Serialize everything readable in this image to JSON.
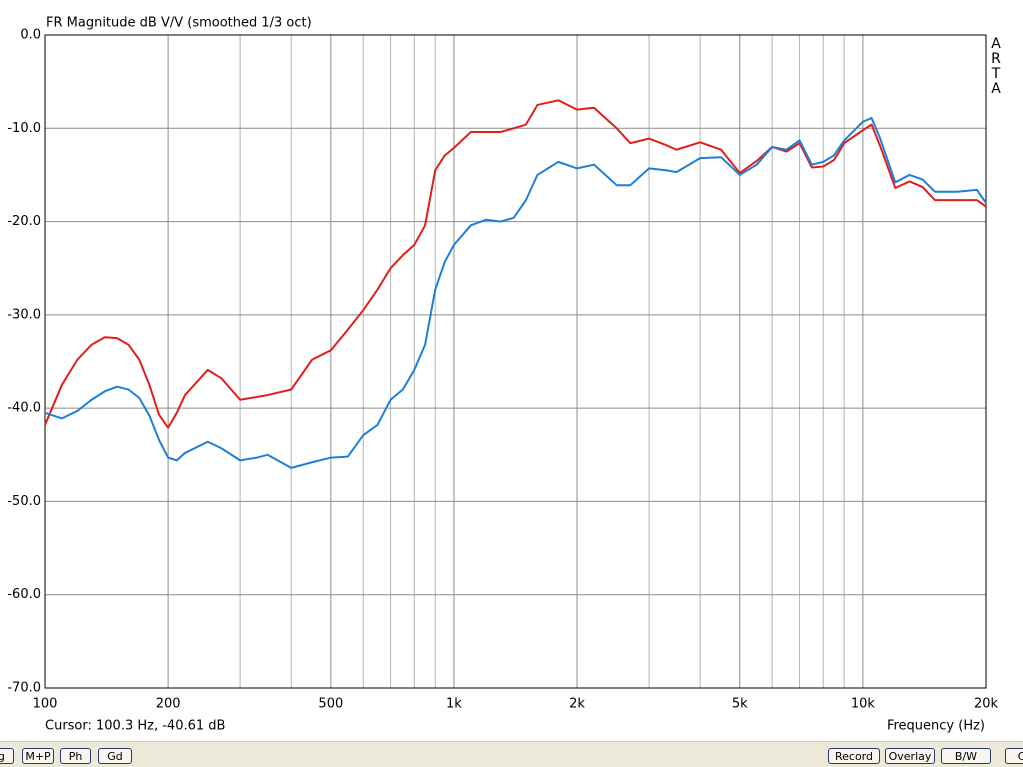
{
  "chart_data": {
    "type": "line",
    "title": "FR Magnitude dB V/V (smoothed 1/3 oct)",
    "xlabel": "Frequency (Hz)",
    "xscale": "log",
    "grid": true,
    "x": [
      100,
      110,
      120,
      130,
      140,
      150,
      160,
      170,
      180,
      190,
      200,
      210,
      220,
      250,
      270,
      300,
      330,
      350,
      400,
      450,
      500,
      550,
      600,
      650,
      700,
      750,
      800,
      850,
      900,
      950,
      1000,
      1100,
      1200,
      1300,
      1400,
      1500,
      1600,
      1800,
      2000,
      2200,
      2500,
      2700,
      3000,
      3300,
      3500,
      4000,
      4500,
      5000,
      5500,
      6000,
      6500,
      7000,
      7500,
      8000,
      8500,
      9000,
      10000,
      10500,
      11000,
      12000,
      13000,
      14000,
      15000,
      17000,
      19000,
      20000
    ],
    "series": [
      {
        "color": "#e01e1e",
        "values": [
          -41.8,
          -37.5,
          -34.8,
          -33.2,
          -32.4,
          -32.5,
          -33.2,
          -34.8,
          -37.5,
          -40.7,
          -42.1,
          -40.5,
          -38.6,
          -35.9,
          -36.8,
          -39.1,
          -38.8,
          -38.6,
          -38.0,
          -34.8,
          -33.8,
          -31.6,
          -29.5,
          -27.3,
          -25.0,
          -23.6,
          -22.5,
          -20.4,
          -14.5,
          -12.9,
          -12.1,
          -10.4,
          -10.4,
          -10.4,
          -10.0,
          -9.6,
          -7.5,
          -7.0,
          -8.0,
          -7.8,
          -10.0,
          -11.6,
          -11.1,
          -11.8,
          -12.3,
          -11.5,
          -12.3,
          -14.8,
          -13.5,
          -12.0,
          -12.5,
          -11.6,
          -14.2,
          -14.1,
          -13.4,
          -11.6,
          -10.2,
          -9.6,
          -11.8,
          -16.4,
          -15.7,
          -16.3,
          -17.7,
          -17.7,
          -17.7,
          -18.4
        ]
      },
      {
        "color": "#1f7fd4",
        "values": [
          -40.5,
          -41.1,
          -40.3,
          -39.1,
          -38.2,
          -37.7,
          -38.0,
          -38.9,
          -40.8,
          -43.4,
          -45.3,
          -45.6,
          -44.8,
          -43.6,
          -44.3,
          -45.6,
          -45.3,
          -45.0,
          -46.4,
          -45.8,
          -45.3,
          -45.2,
          -42.9,
          -41.8,
          -39.1,
          -38.0,
          -35.9,
          -33.2,
          -27.3,
          -24.3,
          -22.5,
          -20.4,
          -19.8,
          -20.0,
          -19.6,
          -17.7,
          -15.0,
          -13.6,
          -14.3,
          -13.9,
          -16.1,
          -16.1,
          -14.3,
          -14.5,
          -14.7,
          -13.2,
          -13.1,
          -15.0,
          -13.9,
          -12.0,
          -12.3,
          -11.3,
          -13.9,
          -13.6,
          -12.9,
          -11.3,
          -9.3,
          -8.9,
          -11.0,
          -15.8,
          -15.0,
          -15.5,
          -16.8,
          -16.8,
          -16.6,
          -18.0
        ]
      }
    ],
    "xlim": [
      100,
      20000
    ],
    "ylim": [
      -70,
      0
    ],
    "xticks": [
      100,
      200,
      500,
      {
        "value": 1000,
        "label": "1k"
      },
      {
        "value": 2000,
        "label": "2k"
      },
      {
        "value": 5000,
        "label": "5k"
      },
      {
        "value": 10000,
        "label": "10k"
      },
      {
        "value": 20000,
        "label": "20k"
      }
    ],
    "xgrid_minor": [
      300,
      400,
      600,
      700,
      800,
      900,
      3000,
      4000,
      6000,
      7000,
      8000,
      9000
    ],
    "yticks": [
      {
        "value": 0,
        "label": "0.0"
      },
      {
        "value": -10,
        "label": "-10.0"
      },
      {
        "value": -20,
        "label": "-20.0"
      },
      {
        "value": -30,
        "label": "-30.0"
      },
      {
        "value": -40,
        "label": "-40.0"
      },
      {
        "value": -50,
        "label": "-50.0"
      },
      {
        "value": -60,
        "label": "-60.0"
      },
      {
        "value": -70,
        "label": "-70.0"
      }
    ]
  },
  "watermark": "ARTA",
  "cursor_readout": "Cursor: 100.3 Hz, -40.61 dB",
  "toolbar": {
    "left": [
      "ag",
      "M+P",
      "Ph",
      "Gd"
    ],
    "right": [
      "Record",
      "Overlay",
      "B/W",
      "Co"
    ]
  }
}
